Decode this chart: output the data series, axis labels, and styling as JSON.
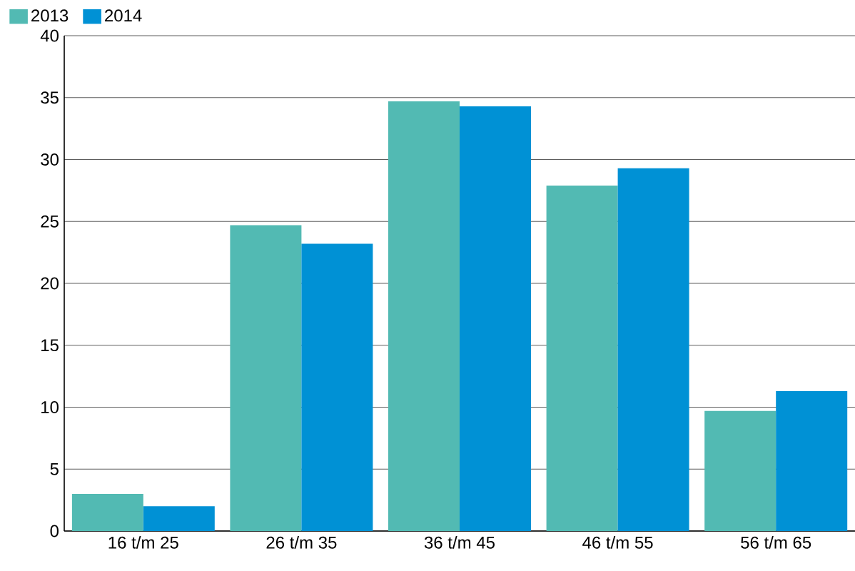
{
  "chart_data": {
    "type": "bar",
    "categories": [
      "16 t/m 25",
      "26 t/m 35",
      "36 t/m 45",
      "46 t/m 55",
      "56 t/m 65"
    ],
    "series": [
      {
        "name": "2013",
        "color": "#52bab3",
        "values": [
          3.0,
          24.7,
          34.7,
          27.9,
          9.7
        ]
      },
      {
        "name": "2014",
        "color": "#0091d5",
        "values": [
          2.0,
          23.2,
          34.3,
          29.3,
          11.3
        ]
      }
    ],
    "ylim": [
      0,
      40
    ],
    "yticks": [
      0,
      5,
      10,
      15,
      20,
      25,
      30,
      35,
      40
    ],
    "grid": "y",
    "legend": "top left"
  }
}
